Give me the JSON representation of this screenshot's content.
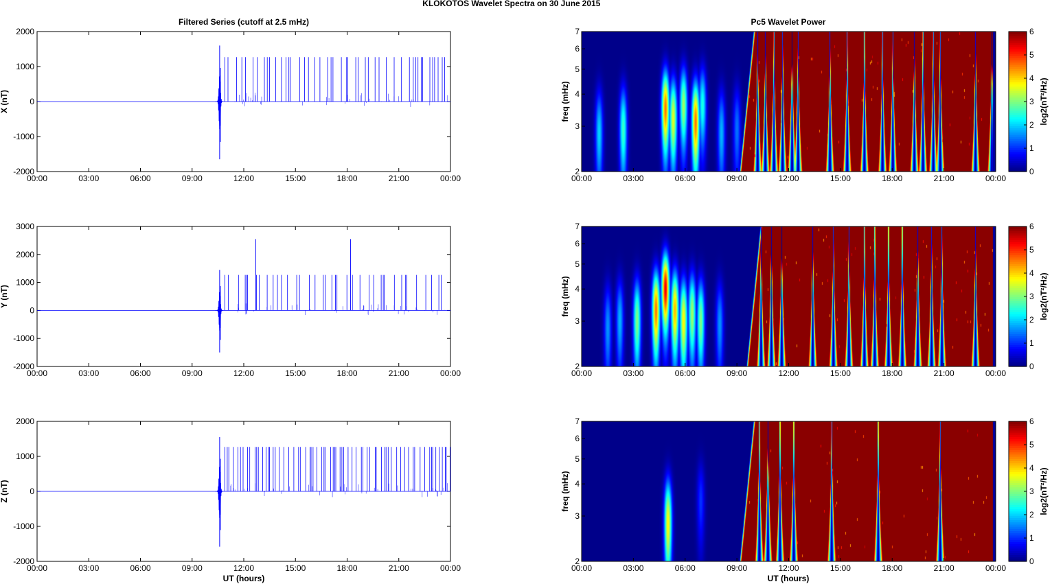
{
  "figure": {
    "title_left": "KLOKOTOS Wavelet Spectra on 30 June",
    "title_right": "2015",
    "left_title": "Filtered Series (cutoff at 2.5 mHz)",
    "right_title": "Pc5 Wavelet Power",
    "xlabel": "UT (hours)"
  },
  "chart_data": [
    {
      "type": "line",
      "name": "X",
      "ylabel": "X (nT)",
      "x_ticks": [
        "00:00",
        "03:00",
        "06:00",
        "09:00",
        "12:00",
        "15:00",
        "18:00",
        "21:00",
        "00:00"
      ],
      "xlim_hours": [
        0,
        24
      ],
      "ylim": [
        -2000,
        2000
      ],
      "y_ticks": [
        -2000,
        -1000,
        0,
        1000,
        2000
      ],
      "color": "#0000ff",
      "burst": {
        "hour": 10.6,
        "max": 1600,
        "min": -1650
      },
      "spikes": {
        "height": 1270,
        "start_hour": 10.9,
        "end_hour": 24.0,
        "big": []
      }
    },
    {
      "type": "line",
      "name": "Y",
      "ylabel": "Y (nT)",
      "x_ticks": [
        "00:00",
        "03:00",
        "06:00",
        "09:00",
        "12:00",
        "15:00",
        "18:00",
        "21:00",
        "00:00"
      ],
      "xlim_hours": [
        0,
        24
      ],
      "ylim": [
        -2000,
        3000
      ],
      "y_ticks": [
        -2000,
        -1000,
        0,
        1000,
        2000,
        3000
      ],
      "color": "#0000ff",
      "burst": {
        "hour": 10.6,
        "max": 1450,
        "min": -1500
      },
      "spikes": {
        "height": 1270,
        "start_hour": 10.9,
        "end_hour": 24.0,
        "big": [
          [
            12.7,
            2550
          ],
          [
            18.2,
            2550
          ]
        ]
      }
    },
    {
      "type": "line",
      "name": "Z",
      "ylabel": "Z (nT)",
      "x_ticks": [
        "00:00",
        "03:00",
        "06:00",
        "09:00",
        "12:00",
        "15:00",
        "18:00",
        "21:00",
        "00:00"
      ],
      "xlim_hours": [
        0,
        24
      ],
      "ylim": [
        -2000,
        2000
      ],
      "y_ticks": [
        -2000,
        -1000,
        0,
        1000,
        2000
      ],
      "color": "#0000ff",
      "burst": {
        "hour": 10.6,
        "max": 1550,
        "min": -1580
      },
      "spikes": {
        "height": 1270,
        "start_hour": 10.9,
        "end_hour": 24.0,
        "big": []
      }
    },
    {
      "type": "heatmap",
      "name": "Pc5 power X",
      "ylabel": "freq (mHz)",
      "y_scale": "log",
      "ylim": [
        2,
        7
      ],
      "y_ticks": [
        2,
        3,
        4,
        5,
        6,
        7
      ],
      "x_ticks": [
        "00:00",
        "03:00",
        "06:00",
        "09:00",
        "12:00",
        "15:00",
        "18:00",
        "21:00",
        "00:00"
      ],
      "xlim_hours": [
        0,
        24
      ],
      "colorbar": {
        "label": "log2(nT²/Hz)",
        "ticks": [
          0,
          1,
          2,
          3,
          4,
          5,
          6
        ],
        "range": [
          0,
          6
        ],
        "colormap": "jet"
      },
      "onset_hour": 9.5,
      "dips": [
        10.2,
        10.65,
        11.15,
        11.65,
        12.2,
        12.55,
        14.4,
        15.4,
        16.4,
        17.45,
        18.05,
        19.3,
        19.8,
        20.4,
        20.8,
        22.85,
        23.8
      ],
      "blobs": [
        [
          1.0,
          2.8,
          2
        ],
        [
          2.4,
          2.9,
          2.6
        ],
        [
          4.85,
          3.5,
          4.6
        ],
        [
          5.3,
          3.2,
          3.6
        ],
        [
          5.9,
          3.6,
          3.2
        ],
        [
          6.6,
          3.1,
          4.6
        ],
        [
          7.0,
          3.6,
          2.4
        ],
        [
          8.1,
          2.8,
          1.8
        ],
        [
          9.0,
          2.9,
          1.4
        ]
      ]
    },
    {
      "type": "heatmap",
      "name": "Pc5 power Y",
      "ylabel": "freq (mHz)",
      "y_scale": "log",
      "ylim": [
        2,
        7
      ],
      "y_ticks": [
        2,
        3,
        4,
        5,
        6,
        7
      ],
      "x_ticks": [
        "00:00",
        "03:00",
        "06:00",
        "09:00",
        "12:00",
        "15:00",
        "18:00",
        "21:00",
        "00:00"
      ],
      "xlim_hours": [
        0,
        24
      ],
      "colorbar": {
        "label": "log2(nT²/Hz)",
        "ticks": [
          0,
          1,
          2,
          3,
          4,
          5,
          6
        ],
        "range": [
          0,
          6
        ],
        "colormap": "jet"
      },
      "onset_hour": 9.9,
      "dips": [
        10.4,
        11.0,
        11.6,
        13.4,
        14.6,
        15.5,
        16.4,
        17.0,
        17.8,
        18.6,
        19.5,
        20.3,
        20.9,
        22.85
      ],
      "blobs": [
        [
          1.5,
          2.8,
          1.6
        ],
        [
          2.2,
          3.0,
          1.8
        ],
        [
          3.2,
          3.0,
          3.0
        ],
        [
          4.3,
          3.3,
          4.6
        ],
        [
          4.85,
          4.0,
          5.4
        ],
        [
          5.4,
          3.3,
          4.2
        ],
        [
          5.9,
          3.0,
          3.8
        ],
        [
          6.4,
          3.2,
          3.2
        ],
        [
          6.9,
          3.0,
          3.0
        ],
        [
          8.0,
          2.9,
          1.6
        ]
      ]
    },
    {
      "type": "heatmap",
      "name": "Pc5 power Z",
      "ylabel": "freq (mHz)",
      "y_scale": "log",
      "ylim": [
        2,
        7
      ],
      "y_ticks": [
        2,
        3,
        4,
        5,
        6,
        7
      ],
      "x_ticks": [
        "00:00",
        "03:00",
        "06:00",
        "09:00",
        "12:00",
        "15:00",
        "18:00",
        "21:00",
        "00:00"
      ],
      "xlim_hours": [
        0,
        24
      ],
      "colorbar": {
        "label": "log2(nT²/Hz)",
        "ticks": [
          0,
          1,
          2,
          3,
          4,
          5,
          6
        ],
        "range": [
          0,
          6
        ],
        "colormap": "jet"
      },
      "onset_hour": 9.5,
      "dips": [
        10.3,
        10.8,
        11.5,
        12.3,
        14.5,
        17.2,
        20.8
      ],
      "blobs": [
        [
          5.0,
          2.8,
          3.8
        ],
        [
          6.9,
          3.4,
          1.0
        ]
      ]
    }
  ]
}
